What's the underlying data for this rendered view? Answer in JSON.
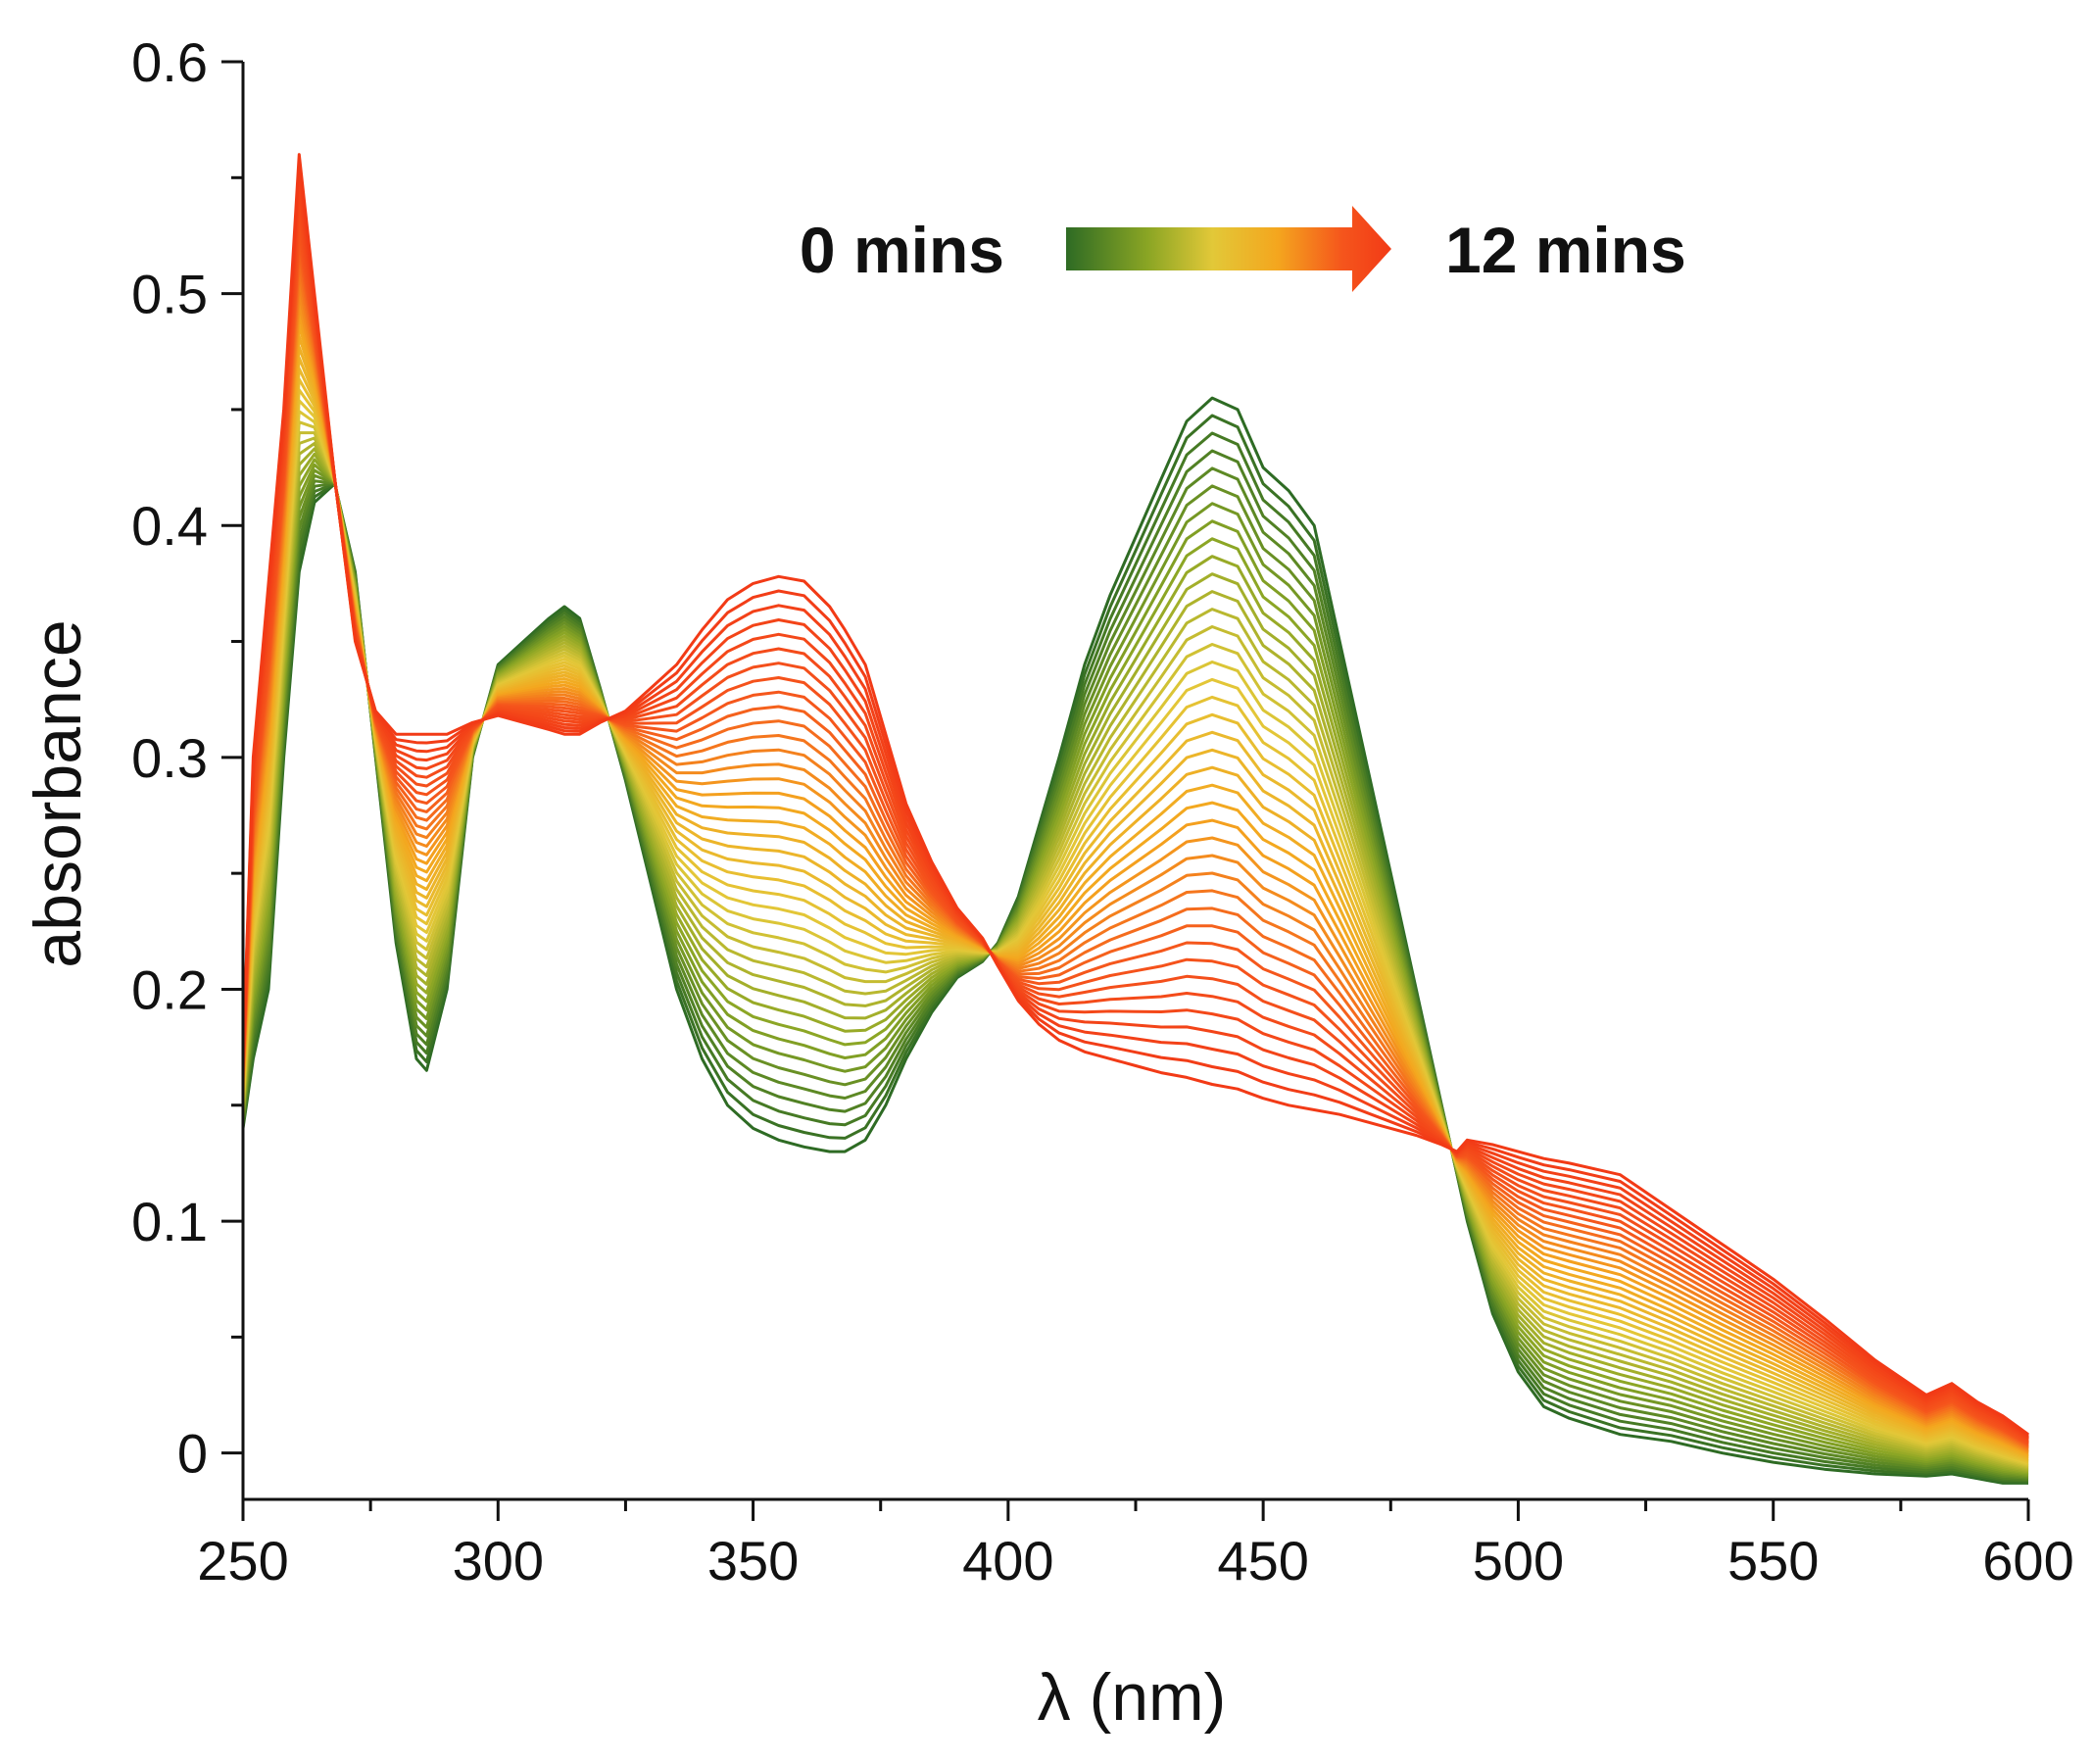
{
  "chart_data": {
    "type": "line",
    "title": "",
    "xlabel": "λ (nm)",
    "ylabel": "absorbance",
    "xlim": [
      250,
      600
    ],
    "ylim": [
      -0.02,
      0.6
    ],
    "x_ticks": [
      "250",
      "300",
      "350",
      "400",
      "450",
      "500",
      "550",
      "600"
    ],
    "y_ticks": [
      "0",
      "0.1",
      "0.2",
      "0.3",
      "0.4",
      "0.5",
      "0.6"
    ],
    "grid": false,
    "legend": {
      "position": "top-right",
      "start_label": "0 mins",
      "end_label": "12 mins",
      "gradient_colors": [
        "#2e6b24",
        "#8aa524",
        "#e2c838",
        "#f4a61e",
        "#f5551c",
        "#f23a16"
      ]
    },
    "series_count": 40,
    "series_start": {
      "label": "0 mins",
      "color": "#2e6b24",
      "x": [
        250,
        252,
        255,
        258,
        261,
        264,
        268,
        272,
        276,
        280,
        284,
        286,
        290,
        295,
        300,
        305,
        310,
        313,
        316,
        320,
        325,
        330,
        335,
        340,
        345,
        350,
        355,
        360,
        365,
        368,
        372,
        376,
        380,
        385,
        390,
        395,
        398,
        402,
        406,
        410,
        415,
        420,
        425,
        430,
        435,
        440,
        445,
        450,
        455,
        460,
        465,
        470,
        475,
        480,
        485,
        488,
        490,
        495,
        500,
        505,
        510,
        520,
        530,
        540,
        550,
        560,
        570,
        580,
        585,
        590,
        595,
        600
      ],
      "y": [
        0.14,
        0.17,
        0.2,
        0.3,
        0.38,
        0.41,
        0.418,
        0.38,
        0.3,
        0.22,
        0.17,
        0.165,
        0.2,
        0.3,
        0.34,
        0.35,
        0.36,
        0.365,
        0.36,
        0.33,
        0.29,
        0.245,
        0.2,
        0.17,
        0.15,
        0.14,
        0.135,
        0.132,
        0.13,
        0.13,
        0.135,
        0.15,
        0.17,
        0.19,
        0.205,
        0.212,
        0.22,
        0.24,
        0.27,
        0.3,
        0.34,
        0.37,
        0.395,
        0.42,
        0.445,
        0.455,
        0.45,
        0.425,
        0.415,
        0.4,
        0.35,
        0.3,
        0.25,
        0.2,
        0.15,
        0.12,
        0.1,
        0.06,
        0.035,
        0.02,
        0.015,
        0.008,
        0.005,
        0.0,
        -0.004,
        -0.007,
        -0.009,
        -0.01,
        -0.009,
        -0.011,
        -0.013,
        -0.013
      ]
    },
    "series_end": {
      "label": "12 mins",
      "color": "#f23a16",
      "x": [
        250,
        252,
        255,
        258,
        261,
        264,
        268,
        272,
        276,
        280,
        284,
        286,
        290,
        295,
        300,
        305,
        310,
        313,
        316,
        320,
        325,
        330,
        335,
        340,
        345,
        350,
        355,
        360,
        365,
        368,
        372,
        376,
        380,
        385,
        390,
        395,
        398,
        402,
        406,
        410,
        415,
        420,
        425,
        430,
        435,
        440,
        445,
        450,
        455,
        460,
        465,
        470,
        475,
        480,
        485,
        488,
        490,
        495,
        500,
        505,
        510,
        520,
        530,
        540,
        550,
        560,
        570,
        580,
        585,
        590,
        595,
        600
      ],
      "y": [
        0.17,
        0.3,
        0.375,
        0.45,
        0.56,
        0.5,
        0.42,
        0.35,
        0.32,
        0.31,
        0.31,
        0.31,
        0.31,
        0.315,
        0.318,
        0.315,
        0.312,
        0.31,
        0.31,
        0.315,
        0.32,
        0.33,
        0.34,
        0.355,
        0.368,
        0.375,
        0.378,
        0.376,
        0.365,
        0.355,
        0.34,
        0.31,
        0.28,
        0.255,
        0.235,
        0.222,
        0.21,
        0.195,
        0.185,
        0.178,
        0.173,
        0.17,
        0.167,
        0.164,
        0.162,
        0.159,
        0.157,
        0.153,
        0.15,
        0.148,
        0.146,
        0.143,
        0.14,
        0.137,
        0.133,
        0.13,
        0.135,
        0.133,
        0.13,
        0.127,
        0.125,
        0.12,
        0.105,
        0.09,
        0.075,
        0.058,
        0.04,
        0.025,
        0.03,
        0.022,
        0.016,
        0.008
      ]
    }
  }
}
